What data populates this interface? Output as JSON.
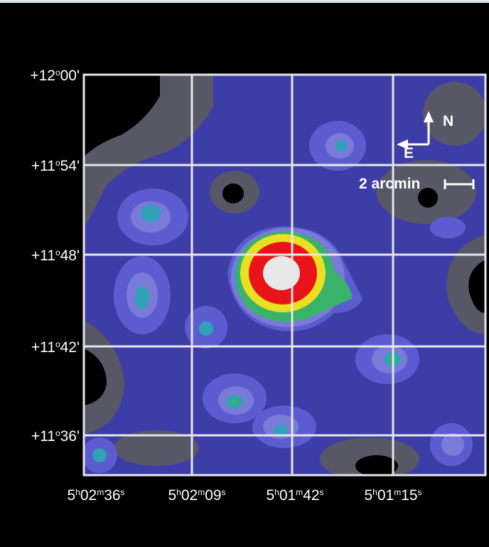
{
  "dec_labels": [
    [
      "+12",
      "o",
      "00'"
    ],
    [
      "+11",
      "o",
      "54'"
    ],
    [
      "+11",
      "o",
      "48'"
    ],
    [
      "+11",
      "o",
      "42'"
    ],
    [
      "+11",
      "o",
      "36'"
    ]
  ],
  "ra_labels": [
    [
      "5",
      "h",
      "02",
      "m",
      "36",
      "s"
    ],
    [
      "5",
      "h",
      "02",
      "m",
      "09",
      "s"
    ],
    [
      "5",
      "h",
      "01",
      "m",
      "42",
      "s"
    ],
    [
      "5",
      "h",
      "01",
      "m",
      "15",
      "s"
    ]
  ],
  "compass": {
    "north": "N",
    "east": "E"
  },
  "scale_label": "2 arcmin"
}
